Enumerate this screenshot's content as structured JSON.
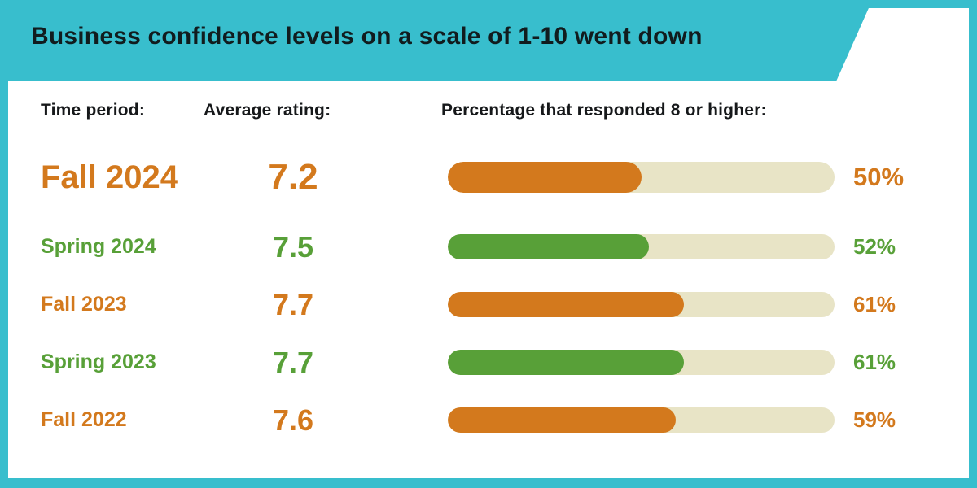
{
  "title": "Business confidence levels on a scale of 1-10 went down",
  "columns": {
    "time_period": "Time period:",
    "average_rating": "Average rating:",
    "percentage": "Percentage that responded 8 or higher:"
  },
  "rows": [
    {
      "period": "Fall 2024",
      "rating": "7.2",
      "percent": 50,
      "percent_label": "50%",
      "color_key": "orange",
      "emphasized": true
    },
    {
      "period": "Spring 2024",
      "rating": "7.5",
      "percent": 52,
      "percent_label": "52%",
      "color_key": "green",
      "emphasized": false
    },
    {
      "period": "Fall 2023",
      "rating": "7.7",
      "percent": 61,
      "percent_label": "61%",
      "color_key": "orange",
      "emphasized": false
    },
    {
      "period": "Spring 2023",
      "rating": "7.7",
      "percent": 61,
      "percent_label": "61%",
      "color_key": "green",
      "emphasized": false
    },
    {
      "period": "Fall 2022",
      "rating": "7.6",
      "percent": 59,
      "percent_label": "59%",
      "color_key": "orange",
      "emphasized": false
    }
  ],
  "colors": {
    "teal": "#38BECD",
    "orange": "#D3791D",
    "green": "#58A038",
    "track_beige": "#E8E4C6",
    "title_text": "#111C1E",
    "header_text": "#16181A",
    "panel_white": "#FFFFFF"
  },
  "chart_data": {
    "type": "bar",
    "orientation": "horizontal",
    "title": "Business confidence levels on a scale of 1-10 went down",
    "categories": [
      "Fall 2024",
      "Spring 2024",
      "Fall 2023",
      "Spring 2023",
      "Fall 2022"
    ],
    "series": [
      {
        "name": "Average rating (scale 1-10)",
        "values": [
          7.2,
          7.5,
          7.7,
          7.7,
          7.6
        ]
      },
      {
        "name": "Percentage that responded 8 or higher (%)",
        "values": [
          50,
          52,
          61,
          61,
          59
        ]
      }
    ],
    "bar_value_axis": {
      "min": 0,
      "max": 100,
      "unit": "%"
    },
    "bar_colors": [
      "#D3791D",
      "#58A038",
      "#D3791D",
      "#58A038",
      "#D3791D"
    ],
    "track_color": "#E8E4C6",
    "legend": false,
    "grid": false,
    "annotations": [
      "50%",
      "52%",
      "61%",
      "61%",
      "59%"
    ]
  }
}
